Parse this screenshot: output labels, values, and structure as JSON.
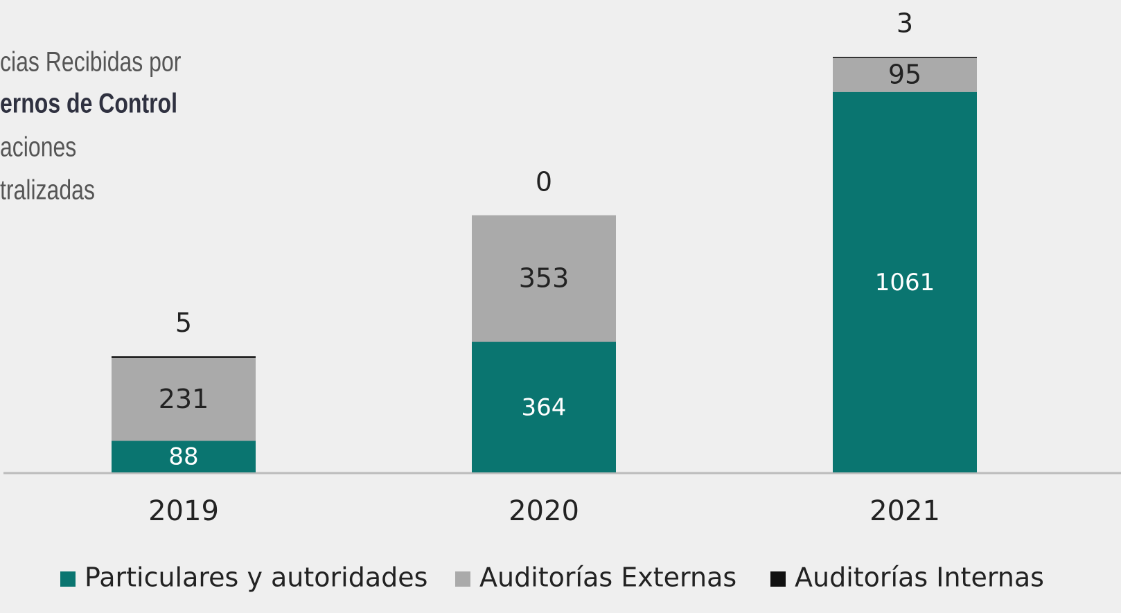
{
  "chart_data": {
    "type": "stacked-bar",
    "title_lines": [
      "cias Recibidas por",
      "ernos de Control",
      "aciones",
      "tralizadas"
    ],
    "categories": [
      "2019",
      "2020",
      "2021"
    ],
    "series": [
      {
        "name": "Particulares y autoridades",
        "color": "#0a7570",
        "label_color": "#ffffff",
        "values": [
          88,
          364,
          1061
        ]
      },
      {
        "name": "Auditorías Externas",
        "color": "#aaaaaa",
        "label_color": "#222222",
        "values": [
          231,
          353,
          95
        ]
      },
      {
        "name": "Auditorías Internas",
        "color": "#111111",
        "label_color": "#222222",
        "values": [
          5,
          0,
          3
        ]
      }
    ]
  }
}
